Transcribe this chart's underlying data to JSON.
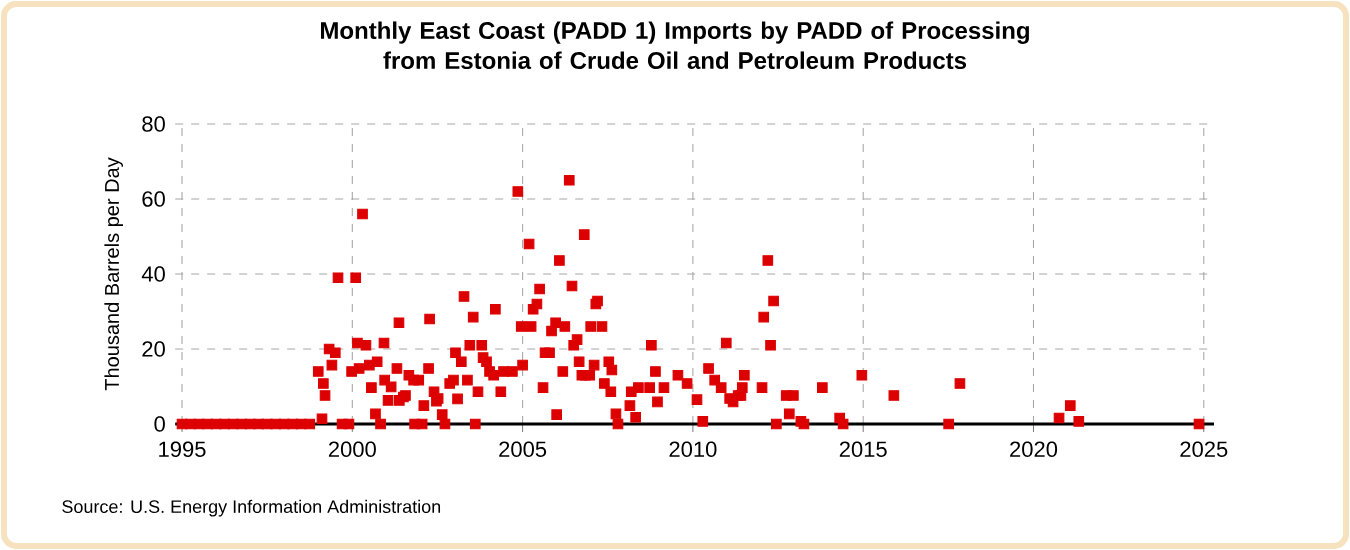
{
  "chart_data": {
    "type": "scatter",
    "title": "Monthly East Coast (PADD 1) Imports by PADD of Processing from Estonia of Crude Oil and Petroleum Products",
    "ylabel": "Thousand Barrels per Day",
    "annotations": [
      "Source: U.S. Energy Information Administration"
    ],
    "x": [
      1995.0,
      1995.25,
      1995.5,
      1995.75,
      1996.0,
      1996.25,
      1996.5,
      1996.75,
      1997.0,
      1997.25,
      1997.5,
      1997.75,
      1998.0,
      1998.25,
      1998.5,
      1998.75,
      1999.0,
      1999.11,
      1999.15,
      1999.2,
      1999.32,
      1999.4,
      1999.5,
      1999.58,
      1999.7,
      1999.9,
      1999.98,
      2000.1,
      2000.15,
      2000.2,
      2000.3,
      2000.4,
      2000.5,
      2000.56,
      2000.68,
      2000.73,
      2000.83,
      2000.93,
      2000.95,
      2001.05,
      2001.14,
      2001.31,
      2001.37,
      2001.38,
      2001.5,
      2001.56,
      2001.66,
      2001.8,
      2001.83,
      2001.95,
      2002.05,
      2002.1,
      2002.24,
      2002.27,
      2002.4,
      2002.47,
      2002.52,
      2002.64,
      2002.72,
      2002.86,
      2002.97,
      2003.03,
      2003.09,
      2003.2,
      2003.28,
      2003.38,
      2003.45,
      2003.55,
      2003.61,
      2003.69,
      2003.8,
      2003.84,
      2003.94,
      2004.03,
      2004.15,
      2004.2,
      2004.36,
      2004.44,
      2004.7,
      2004.86,
      2004.96,
      2005.0,
      2005.19,
      2005.25,
      2005.31,
      2005.42,
      2005.5,
      2005.6,
      2005.66,
      2005.79,
      2005.85,
      2005.97,
      2006.0,
      2006.08,
      2006.18,
      2006.24,
      2006.37,
      2006.45,
      2006.5,
      2006.6,
      2006.66,
      2006.74,
      2006.81,
      2006.85,
      2006.97,
      2007.0,
      2007.1,
      2007.15,
      2007.2,
      2007.33,
      2007.4,
      2007.53,
      2007.59,
      2007.62,
      2007.74,
      2007.8,
      2008.15,
      2008.19,
      2008.32,
      2008.4,
      2008.73,
      2008.78,
      2008.9,
      2008.96,
      2009.15,
      2009.56,
      2009.83,
      2010.12,
      2010.29,
      2010.46,
      2010.64,
      2010.83,
      2010.98,
      2011.08,
      2011.18,
      2011.33,
      2011.41,
      2011.45,
      2011.51,
      2012.03,
      2012.08,
      2012.2,
      2012.28,
      2012.37,
      2012.45,
      2012.74,
      2012.83,
      2012.95,
      2013.17,
      2013.26,
      2013.8,
      2014.31,
      2014.41,
      2014.96,
      2015.9,
      2017.51,
      2017.84,
      2020.75,
      2021.08,
      2021.33,
      2024.86
    ],
    "values": [
      0,
      0,
      0,
      0,
      0,
      0,
      0,
      0,
      0,
      0,
      0,
      0,
      0,
      0,
      0,
      0,
      14,
      1.4,
      10.8,
      7.6,
      20,
      15.7,
      19,
      39,
      0,
      0,
      14,
      39,
      21.6,
      14.8,
      56,
      21,
      15.7,
      9.7,
      2.7,
      16.6,
      0,
      21.6,
      11.7,
      6.3,
      9.9,
      14.8,
      27,
      6.3,
      7.2,
      7.6,
      13,
      11.7,
      0,
      11.7,
      0,
      4.9,
      14.8,
      28,
      8.6,
      6.1,
      6.8,
      2.5,
      0,
      10.8,
      11.7,
      19,
      6.7,
      16.6,
      34,
      11.7,
      21,
      28.5,
      0,
      8.6,
      21,
      17.7,
      16.6,
      14,
      13,
      30.6,
      8.6,
      14,
      14,
      62,
      26,
      15.7,
      48,
      26,
      30.6,
      32,
      36,
      9.7,
      19,
      19,
      24.8,
      27,
      2.5,
      43.6,
      14,
      26,
      65,
      36.8,
      21,
      22.5,
      16.6,
      13,
      50.5,
      13,
      13,
      26,
      15.7,
      32,
      32.8,
      26,
      10.8,
      16.6,
      8.6,
      14.4,
      2.7,
      0,
      4.9,
      8.6,
      1.8,
      9.7,
      9.7,
      21,
      14,
      5.9,
      9.7,
      13,
      10.8,
      6.5,
      0.7,
      14.8,
      11.7,
      9.7,
      21.6,
      6.8,
      5.9,
      7.6,
      7.6,
      9.7,
      13,
      9.7,
      28.5,
      43.6,
      21,
      32.8,
      0,
      7.6,
      2.7,
      7.6,
      0.7,
      0,
      9.7,
      1.6,
      0,
      13,
      7.6,
      0,
      10.8,
      1.6,
      4.9,
      0.7,
      0
    ],
    "color": "#dd0000",
    "marker": "square",
    "xlim": [
      1994.8,
      2025.3
    ],
    "ylim": [
      0,
      80
    ],
    "xticks": [
      1995,
      2000,
      2005,
      2010,
      2015,
      2020,
      2025
    ],
    "yticks": [
      0,
      20,
      40,
      60,
      80
    ],
    "grid": true
  }
}
